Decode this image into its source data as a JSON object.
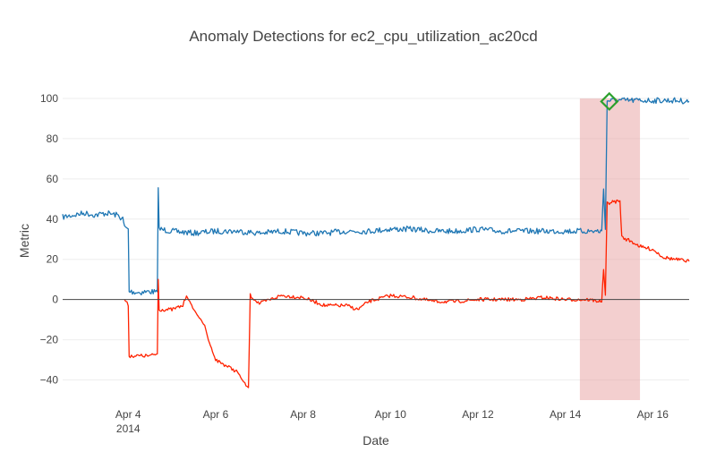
{
  "chart_data": {
    "type": "line",
    "title": "Anomaly Detections for ec2_cpu_utilization_ac20cd",
    "xlabel": "Date",
    "ylabel": "Metric",
    "xlim": [
      "2014-04-02 12:00",
      "2014-04-16 20:00"
    ],
    "ylim": [
      -50,
      108
    ],
    "grid": true,
    "legend": "none",
    "x_ticks": [
      {
        "at": "2014-04-04",
        "label": "Apr 4",
        "sublabel": "2014"
      },
      {
        "at": "2014-04-06",
        "label": "Apr 6"
      },
      {
        "at": "2014-04-08",
        "label": "Apr 8"
      },
      {
        "at": "2014-04-10",
        "label": "Apr 10"
      },
      {
        "at": "2014-04-12",
        "label": "Apr 12"
      },
      {
        "at": "2014-04-14",
        "label": "Apr 14"
      },
      {
        "at": "2014-04-16",
        "label": "Apr 16"
      }
    ],
    "y_ticks": [
      {
        "value": -40,
        "label": "−40"
      },
      {
        "value": -20,
        "label": "−20"
      },
      {
        "value": 0,
        "label": "0"
      },
      {
        "value": 20,
        "label": "20"
      },
      {
        "value": 40,
        "label": "40"
      },
      {
        "value": 60,
        "label": "60"
      },
      {
        "value": 80,
        "label": "80"
      },
      {
        "value": 100,
        "label": "100"
      }
    ],
    "anomaly_window": {
      "start": "2014-04-14 08:00",
      "end": "2014-04-15 17:00",
      "color": "#e8a0a0"
    },
    "anomaly_points": [
      {
        "x": "2014-04-15 00:10",
        "y": 98.5,
        "color": "#2ca02c"
      }
    ],
    "series": [
      {
        "color": "#1f77b4",
        "points": [
          [
            "2014-04-02 12:00",
            41
          ],
          [
            "2014-04-02 18:00",
            42
          ],
          [
            "2014-04-03 00:00",
            43
          ],
          [
            "2014-04-03 06:00",
            42
          ],
          [
            "2014-04-03 12:00",
            43
          ],
          [
            "2014-04-03 18:00",
            42
          ],
          [
            "2014-04-03 21:00",
            40
          ],
          [
            "2014-04-03 22:00",
            36
          ],
          [
            "2014-04-04 00:00",
            35
          ],
          [
            "2014-04-04 00:30",
            4
          ],
          [
            "2014-04-04 06:00",
            3.5
          ],
          [
            "2014-04-04 12:00",
            4
          ],
          [
            "2014-04-04 16:00",
            3.5
          ],
          [
            "2014-04-04 16:30",
            56
          ],
          [
            "2014-04-04 17:00",
            35
          ],
          [
            "2014-04-05 00:00",
            34
          ],
          [
            "2014-04-05 12:00",
            33
          ],
          [
            "2014-04-06 00:00",
            34
          ],
          [
            "2014-04-06 12:00",
            34
          ],
          [
            "2014-04-07 00:00",
            33
          ],
          [
            "2014-04-07 12:00",
            34
          ],
          [
            "2014-04-08 00:00",
            33
          ],
          [
            "2014-04-08 12:00",
            33
          ],
          [
            "2014-04-09 00:00",
            34
          ],
          [
            "2014-04-09 12:00",
            34
          ],
          [
            "2014-04-10 00:00",
            35
          ],
          [
            "2014-04-10 12:00",
            35
          ],
          [
            "2014-04-11 00:00",
            34
          ],
          [
            "2014-04-11 12:00",
            34
          ],
          [
            "2014-04-12 00:00",
            35
          ],
          [
            "2014-04-12 12:00",
            34
          ],
          [
            "2014-04-13 00:00",
            34
          ],
          [
            "2014-04-13 12:00",
            34
          ],
          [
            "2014-04-14 00:00",
            34
          ],
          [
            "2014-04-14 12:00",
            34
          ],
          [
            "2014-04-14 20:00",
            34
          ],
          [
            "2014-04-14 21:00",
            55
          ],
          [
            "2014-04-14 22:00",
            35
          ],
          [
            "2014-04-14 23:00",
            99
          ],
          [
            "2014-04-15 06:00",
            99
          ],
          [
            "2014-04-15 12:00",
            99
          ],
          [
            "2014-04-15 18:00",
            99
          ],
          [
            "2014-04-16 00:00",
            99
          ],
          [
            "2014-04-16 12:00",
            99
          ],
          [
            "2014-04-16 20:00",
            98.5
          ]
        ]
      },
      {
        "color": "#ff2200",
        "points": [
          [
            "2014-04-03 22:00",
            0
          ],
          [
            "2014-04-04 00:00",
            -3
          ],
          [
            "2014-04-04 00:30",
            -28
          ],
          [
            "2014-04-04 06:00",
            -28
          ],
          [
            "2014-04-04 12:00",
            -28
          ],
          [
            "2014-04-04 16:00",
            -27
          ],
          [
            "2014-04-04 16:30",
            10
          ],
          [
            "2014-04-04 17:00",
            -5
          ],
          [
            "2014-04-05 00:00",
            -5
          ],
          [
            "2014-04-05 06:00",
            -3
          ],
          [
            "2014-04-05 08:00",
            2
          ],
          [
            "2014-04-05 12:00",
            -5
          ],
          [
            "2014-04-05 18:00",
            -13
          ],
          [
            "2014-04-05 20:00",
            -20
          ],
          [
            "2014-04-06 00:00",
            -30
          ],
          [
            "2014-04-06 06:00",
            -33
          ],
          [
            "2014-04-06 12:00",
            -36
          ],
          [
            "2014-04-06 16:00",
            -42
          ],
          [
            "2014-04-06 18:00",
            -44
          ],
          [
            "2014-04-06 19:00",
            2
          ],
          [
            "2014-04-07 00:00",
            -2
          ],
          [
            "2014-04-07 12:00",
            2
          ],
          [
            "2014-04-08 00:00",
            1
          ],
          [
            "2014-04-08 12:00",
            -3
          ],
          [
            "2014-04-09 00:00",
            -3
          ],
          [
            "2014-04-09 06:00",
            -5
          ],
          [
            "2014-04-09 12:00",
            -1
          ],
          [
            "2014-04-10 00:00",
            2
          ],
          [
            "2014-04-10 12:00",
            1
          ],
          [
            "2014-04-11 00:00",
            -1
          ],
          [
            "2014-04-11 12:00",
            -1
          ],
          [
            "2014-04-12 00:00",
            0
          ],
          [
            "2014-04-12 12:00",
            0
          ],
          [
            "2014-04-13 00:00",
            0
          ],
          [
            "2014-04-13 12:00",
            1
          ],
          [
            "2014-04-14 00:00",
            0
          ],
          [
            "2014-04-14 12:00",
            0
          ],
          [
            "2014-04-14 20:00",
            -1
          ],
          [
            "2014-04-14 21:00",
            15
          ],
          [
            "2014-04-14 22:00",
            2
          ],
          [
            "2014-04-14 23:00",
            48
          ],
          [
            "2014-04-15 06:00",
            49
          ],
          [
            "2014-04-15 07:00",
            31
          ],
          [
            "2014-04-15 12:00",
            29
          ],
          [
            "2014-04-15 18:00",
            26
          ],
          [
            "2014-04-16 00:00",
            25
          ],
          [
            "2014-04-16 06:00",
            21
          ],
          [
            "2014-04-16 12:00",
            20
          ],
          [
            "2014-04-16 20:00",
            19
          ]
        ]
      }
    ]
  }
}
